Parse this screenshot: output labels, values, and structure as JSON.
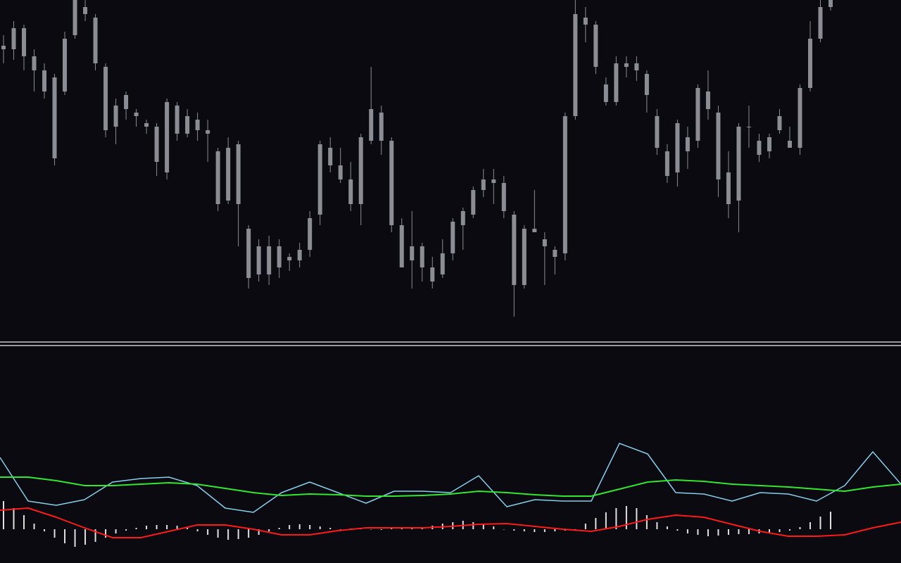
{
  "chart_data": [
    {
      "type": "candlestick",
      "ylim": [
        0,
        480
      ],
      "color": "#8c8c94",
      "open": [
        415,
        410,
        440,
        400,
        350,
        370,
        350,
        430,
        470,
        455,
        385,
        300,
        325,
        320,
        305,
        300,
        235,
        330,
        290,
        310,
        295,
        265,
        195,
        275,
        155,
        90,
        130,
        100,
        115,
        110,
        125,
        175,
        270,
        245,
        225,
        190,
        280,
        320,
        280,
        160,
        110,
        130,
        100,
        90,
        120,
        160,
        175,
        210,
        225,
        220,
        175,
        75,
        155,
        140,
        125,
        120,
        315,
        455,
        445,
        360,
        335,
        385,
        390,
        375,
        315,
        265,
        235,
        285,
        280,
        350,
        320,
        235,
        195,
        300,
        280,
        265,
        295,
        280,
        270,
        355,
        425,
        470
      ],
      "high": [
        430,
        450,
        445,
        410,
        390,
        375,
        435,
        480,
        480,
        460,
        390,
        340,
        350,
        325,
        310,
        305,
        340,
        335,
        325,
        320,
        310,
        270,
        285,
        280,
        160,
        140,
        145,
        140,
        120,
        135,
        180,
        280,
        285,
        270,
        250,
        290,
        385,
        330,
        285,
        170,
        180,
        135,
        115,
        140,
        170,
        185,
        215,
        240,
        240,
        230,
        180,
        160,
        210,
        150,
        130,
        320,
        480,
        470,
        450,
        370,
        400,
        400,
        400,
        380,
        325,
        275,
        310,
        300,
        360,
        380,
        330,
        265,
        305,
        330,
        290,
        290,
        325,
        300,
        360,
        450,
        480,
        480
      ],
      "low": [
        390,
        395,
        380,
        350,
        340,
        245,
        345,
        425,
        450,
        380,
        285,
        275,
        310,
        300,
        290,
        230,
        225,
        280,
        285,
        280,
        250,
        180,
        190,
        130,
        70,
        80,
        75,
        85,
        95,
        100,
        115,
        160,
        235,
        220,
        180,
        160,
        275,
        260,
        150,
        100,
        70,
        80,
        70,
        85,
        110,
        125,
        170,
        200,
        190,
        170,
        30,
        70,
        150,
        75,
        90,
        110,
        310,
        420,
        375,
        330,
        330,
        370,
        365,
        320,
        260,
        220,
        215,
        240,
        270,
        310,
        200,
        170,
        150,
        270,
        250,
        255,
        290,
        270,
        260,
        350,
        420,
        465
      ],
      "close": [
        410,
        440,
        400,
        380,
        380,
        255,
        425,
        480,
        460,
        390,
        295,
        330,
        345,
        315,
        300,
        250,
        335,
        290,
        315,
        295,
        290,
        190,
        270,
        190,
        85,
        130,
        90,
        130,
        110,
        125,
        170,
        275,
        245,
        225,
        190,
        285,
        325,
        280,
        160,
        100,
        130,
        100,
        80,
        120,
        165,
        180,
        210,
        225,
        220,
        180,
        75,
        155,
        150,
        130,
        115,
        315,
        460,
        445,
        385,
        335,
        390,
        390,
        380,
        345,
        270,
        230,
        305,
        265,
        355,
        325,
        225,
        190,
        300,
        300,
        260,
        285,
        315,
        270,
        355,
        425,
        470,
        480
      ]
    },
    {
      "type": "indicator",
      "ylim": [
        -48,
        257
      ],
      "xlim": [
        0,
        1280
      ],
      "x": [
        0,
        40,
        80,
        120,
        160,
        200,
        240,
        280,
        320,
        360,
        400,
        440,
        480,
        520,
        560,
        600,
        640,
        680,
        720,
        760,
        800,
        840,
        880,
        920,
        960,
        1000,
        1040,
        1080,
        1120,
        1160,
        1200,
        1240,
        1280
      ],
      "histogram": {
        "color": "#e0e0e0",
        "values": [
          40,
          30,
          20,
          8,
          -3,
          -12,
          -20,
          -25,
          -22,
          -18,
          -12,
          -6,
          -2,
          2,
          5,
          6,
          6,
          5,
          2,
          -3,
          -8,
          -12,
          -15,
          -14,
          -12,
          -8,
          -3,
          2,
          6,
          7,
          6,
          4,
          2,
          0,
          1,
          1,
          0,
          -1,
          1,
          2,
          3,
          3,
          5,
          8,
          10,
          12,
          10,
          8,
          4,
          0,
          -2,
          -3,
          -4,
          -4,
          -3,
          -2,
          0,
          8,
          16,
          24,
          30,
          33,
          30,
          20,
          10,
          4,
          -2,
          -6,
          -8,
          -10,
          -9,
          -8,
          -7,
          -7,
          -6,
          -5,
          -4,
          -2,
          3,
          10,
          18,
          25
        ]
      },
      "series": [
        {
          "color": "#87ceeb",
          "values": [
            102,
            40,
            34,
            42,
            67,
            72,
            74,
            62,
            30,
            24,
            52,
            67,
            52,
            37,
            54,
            54,
            52,
            76,
            32,
            42,
            40,
            40,
            122,
            107,
            52,
            50,
            40,
            52,
            50,
            40,
            62,
            110,
            64
          ]
        },
        {
          "color": "#32e632",
          "values": [
            74,
            74,
            69,
            62,
            62,
            64,
            66,
            64,
            58,
            52,
            48,
            50,
            49,
            47,
            47,
            48,
            50,
            54,
            52,
            49,
            47,
            47,
            57,
            67,
            70,
            68,
            64,
            62,
            60,
            57,
            54,
            60,
            64
          ]
        },
        {
          "color": "#ff1a1a",
          "values": [
            27,
            30,
            17,
            2,
            -12,
            -12,
            -3,
            6,
            6,
            0,
            -8,
            -8,
            -2,
            2,
            2,
            2,
            4,
            7,
            8,
            4,
            0,
            -3,
            4,
            14,
            20,
            17,
            7,
            -3,
            -10,
            -10,
            -8,
            2,
            10
          ]
        }
      ]
    }
  ]
}
